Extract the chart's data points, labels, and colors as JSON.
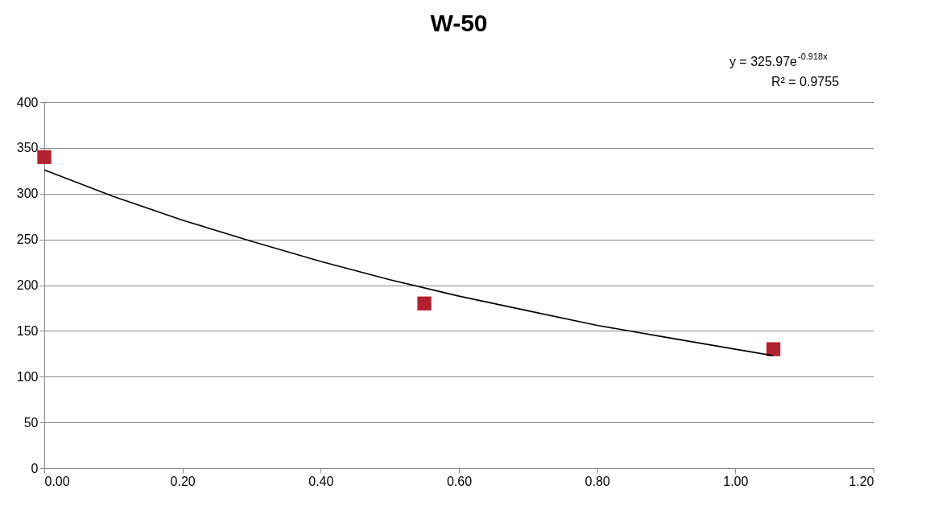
{
  "chart_data": {
    "type": "scatter",
    "title": "W-50",
    "annotations": [
      "y = 325.97e$^{-0.918x}$",
      "R² = 0.9755"
    ],
    "series": [
      {
        "color": "#b3202e",
        "marker": "square",
        "x": [
          0,
          0.55,
          1.055
        ],
        "values": [
          340,
          180,
          130
        ]
      },
      {
        "type": "line",
        "color": "#000000",
        "marker": "none",
        "line_style": "solid",
        "x": [
          0,
          0.1,
          0.2,
          0.3,
          0.4,
          0.5,
          0.6,
          0.7,
          0.8,
          0.9,
          1.0,
          1.055
        ],
        "values": [
          326,
          297,
          271,
          248,
          226,
          206,
          188,
          172,
          156,
          143,
          130,
          123
        ]
      }
    ],
    "xlim": [
      0,
      1.2
    ],
    "xticks": [
      {
        "value": 0,
        "label": "0.00"
      },
      {
        "value": 0.2,
        "label": "0.20"
      },
      {
        "value": 0.4,
        "label": "0.40"
      },
      {
        "value": 0.6,
        "label": "0.60"
      },
      {
        "value": 0.8,
        "label": "0.80"
      },
      {
        "value": 1.0,
        "label": "1.00"
      },
      {
        "value": 1.2,
        "label": "1.20"
      }
    ],
    "ylim": [
      0,
      400
    ],
    "yticks": [
      0,
      50,
      100,
      150,
      200,
      250,
      300,
      350,
      400
    ],
    "grid": "y"
  }
}
